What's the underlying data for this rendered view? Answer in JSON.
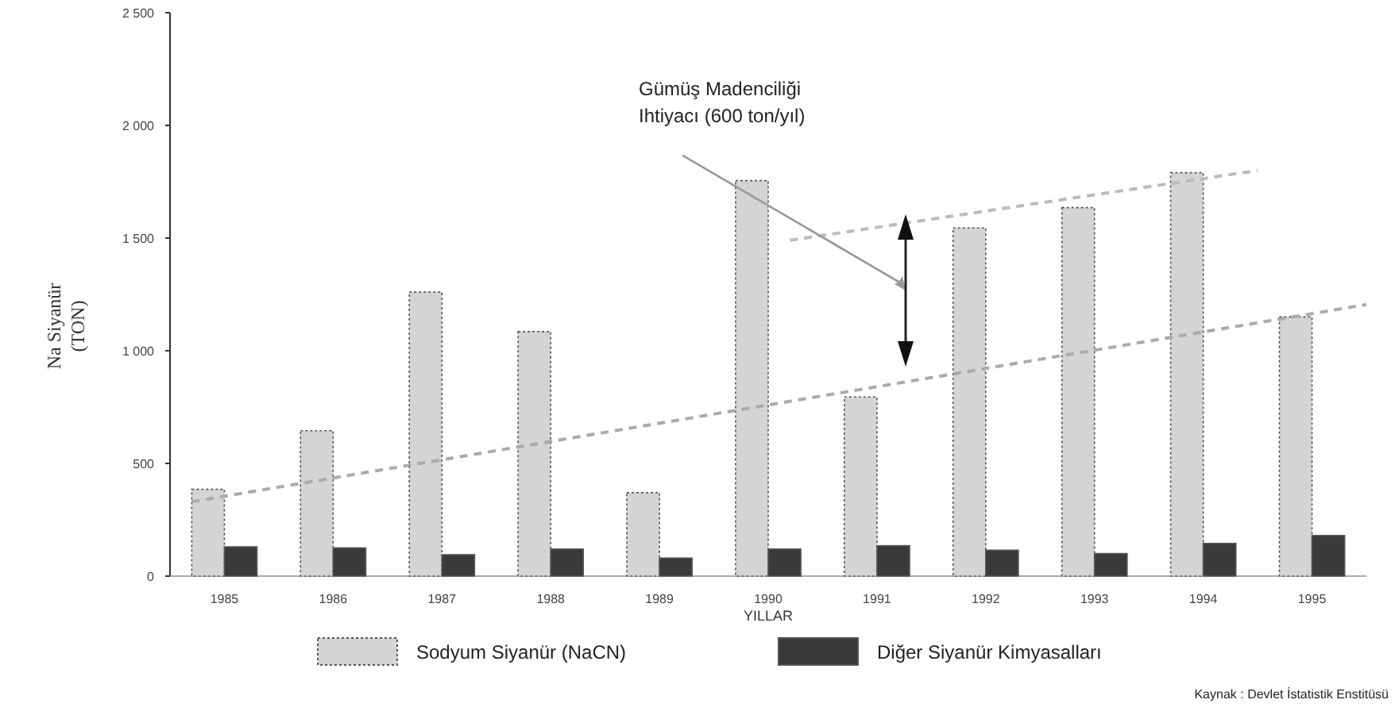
{
  "chart_data": {
    "type": "bar",
    "xlabel": "YILLAR",
    "ylabel": "Na Siyanür\n(TON)",
    "x": [
      1985,
      1986,
      1987,
      1988,
      1989,
      1990,
      1991,
      1992,
      1993,
      1994,
      1995
    ],
    "xlim": [
      1984.5,
      1995.5
    ],
    "xticks": [
      1985,
      1986,
      1987,
      1988,
      1989,
      1990,
      1991,
      1992,
      1993,
      1994,
      1995
    ],
    "ylim": [
      0,
      2500
    ],
    "yticks": [
      {
        "value": 0,
        "label": "0"
      },
      {
        "value": 500,
        "label": "500"
      },
      {
        "value": 1000,
        "label": "1 000"
      },
      {
        "value": 1500,
        "label": "1 500"
      },
      {
        "value": 2000,
        "label": "2 000"
      },
      {
        "value": 2500,
        "label": "2 500"
      }
    ],
    "series": [
      {
        "name": "Sodyum Siyanür  (NaCN)",
        "color": "#d4d4d4",
        "values": [
          385,
          645,
          1260,
          1085,
          370,
          1755,
          795,
          1545,
          1635,
          1790,
          1150
        ]
      },
      {
        "name": "Diğer Siyanür Kimyasalları",
        "color": "#3a3a3a",
        "values": [
          130,
          125,
          95,
          120,
          80,
          120,
          135,
          115,
          100,
          145,
          180
        ]
      },
      {
        "type": "line",
        "color": "#aaaaaa",
        "line_style": "dashed",
        "x": [
          1984.7,
          1995.5
        ],
        "values": [
          330,
          1205
        ]
      },
      {
        "type": "line",
        "color": "#bbbbbb",
        "line_style": "dashed",
        "x": [
          1990.2,
          1994.5
        ],
        "values": [
          1490,
          1800
        ]
      }
    ],
    "annotations": [
      "Gümüş Madenciliği\nIhtiyacı  (600 ton/yıl)",
      "Kaynak :  Devlet İstatistik Enstitüsü"
    ],
    "legend": "bottom",
    "grid": false
  }
}
